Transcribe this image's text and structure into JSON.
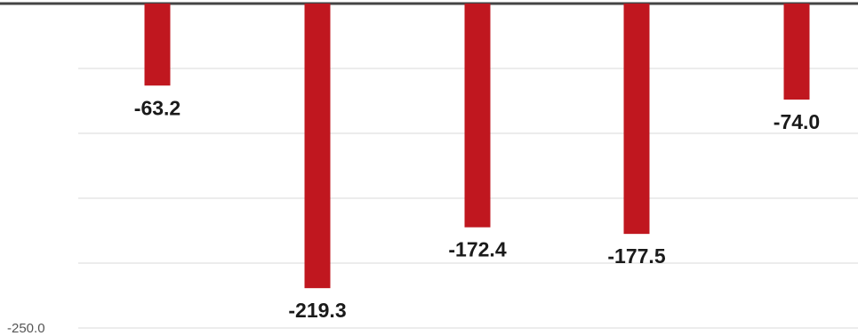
{
  "chart_data": {
    "type": "bar",
    "categories": [
      "",
      "",
      "",
      "",
      ""
    ],
    "values": [
      -63.2,
      -219.3,
      -172.4,
      -177.5,
      -74.0
    ],
    "value_labels": [
      "-63.2",
      "-219.3",
      "-172.4",
      "-177.5",
      "-74.0"
    ],
    "ylim": [
      -250,
      0
    ],
    "y_tick_labels": [
      {
        "value": -250,
        "label": "-250.0"
      }
    ],
    "gridlines": true,
    "title": "",
    "xlabel": "",
    "ylabel": ""
  },
  "colors": {
    "bar": "#c0171f",
    "axis": "#444444",
    "grid": "#e6e6e6"
  }
}
